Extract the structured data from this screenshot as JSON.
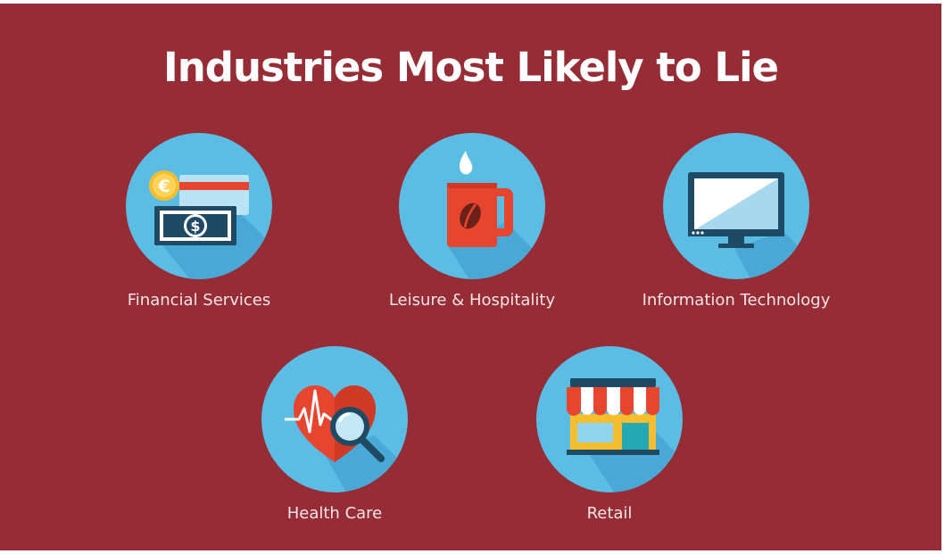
{
  "title": "Industries Most Likely to Lie",
  "colors": {
    "background": "#962c36",
    "circle": "#5bbde4",
    "shadow": "#4aa8d6",
    "accent_red": "#e8452f",
    "accent_yellow": "#f6bd2e"
  },
  "industries": [
    {
      "label": "Financial Services",
      "icon": "money-icon"
    },
    {
      "label": "Leisure & Hospitality",
      "icon": "coffee-mug-icon"
    },
    {
      "label": "Information Technology",
      "icon": "monitor-icon"
    },
    {
      "label": "Health Care",
      "icon": "heart-magnifier-icon"
    },
    {
      "label": "Retail",
      "icon": "storefront-icon"
    }
  ],
  "money_icon": {
    "coin_symbol": "€",
    "bill_symbol": "$"
  }
}
